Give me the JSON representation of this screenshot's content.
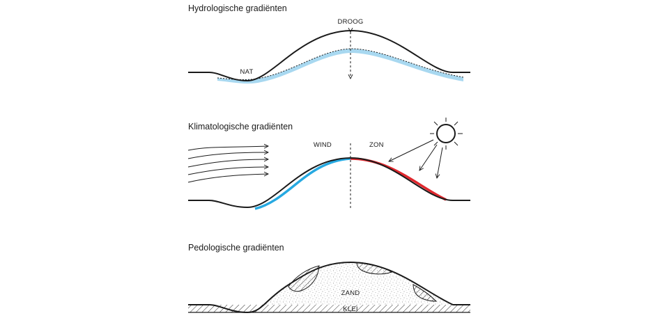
{
  "panels": {
    "hydro": {
      "title": "Hydrologische gradiënten",
      "label_dry": "DROOG",
      "label_wet": "NAT",
      "water_color": "#a8d8f0"
    },
    "climate": {
      "title": "Klimatologische gradiënten",
      "label_wind": "WIND",
      "label_sun": "ZON",
      "wind_side_color": "#27a9e1",
      "sun_side_color": "#e0282e",
      "icons": [
        "wind-arrows-icon",
        "sun-icon",
        "sun-rays-icon"
      ]
    },
    "pedo": {
      "title": "Pedologische gradiënten",
      "label_sand": "ZAND",
      "label_clay": "KLEI"
    }
  }
}
